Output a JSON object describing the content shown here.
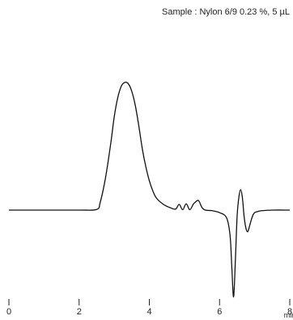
{
  "sample_note": "Sample : Nylon 6/9 0.23 %, 5 µL",
  "chart_data": {
    "type": "line",
    "title": "",
    "xlabel": "",
    "ylabel": "",
    "x_unit": "min",
    "xlim": [
      0,
      8
    ],
    "x_ticks": [
      0,
      2,
      4,
      6,
      8
    ],
    "y_axis_shown": false,
    "grid": false,
    "series": [
      {
        "x": [
          0,
          1,
          2,
          2.5,
          2.6,
          2.75,
          2.9,
          3.0,
          3.1,
          3.2,
          3.3,
          3.4,
          3.5,
          3.6,
          3.7,
          3.8,
          3.9,
          4.0,
          4.1,
          4.2,
          4.4,
          4.6,
          4.75,
          4.85,
          4.95,
          5.05,
          5.15,
          5.25,
          5.3,
          5.4,
          5.5,
          5.6,
          5.8,
          6.0,
          6.2,
          6.3,
          6.35,
          6.4,
          6.45,
          6.5,
          6.55,
          6.6,
          6.65,
          6.7,
          6.75,
          6.8,
          6.85,
          6.9,
          6.95,
          7.0,
          7.1,
          7.2,
          7.5,
          8.0
        ],
        "y": [
          0,
          0,
          0,
          0.005,
          0.06,
          0.25,
          0.52,
          0.73,
          0.88,
          0.97,
          1.0,
          0.99,
          0.93,
          0.82,
          0.66,
          0.48,
          0.34,
          0.23,
          0.15,
          0.095,
          0.045,
          0.018,
          0.008,
          0.045,
          0.003,
          0.05,
          0.003,
          0.045,
          0.06,
          0.075,
          0.02,
          0.0,
          -0.005,
          -0.02,
          -0.06,
          -0.2,
          -0.45,
          -0.68,
          -0.4,
          -0.05,
          0.1,
          0.16,
          0.1,
          -0.05,
          -0.14,
          -0.17,
          -0.13,
          -0.08,
          -0.04,
          -0.02,
          -0.01,
          -0.005,
          0,
          0
        ]
      }
    ]
  }
}
